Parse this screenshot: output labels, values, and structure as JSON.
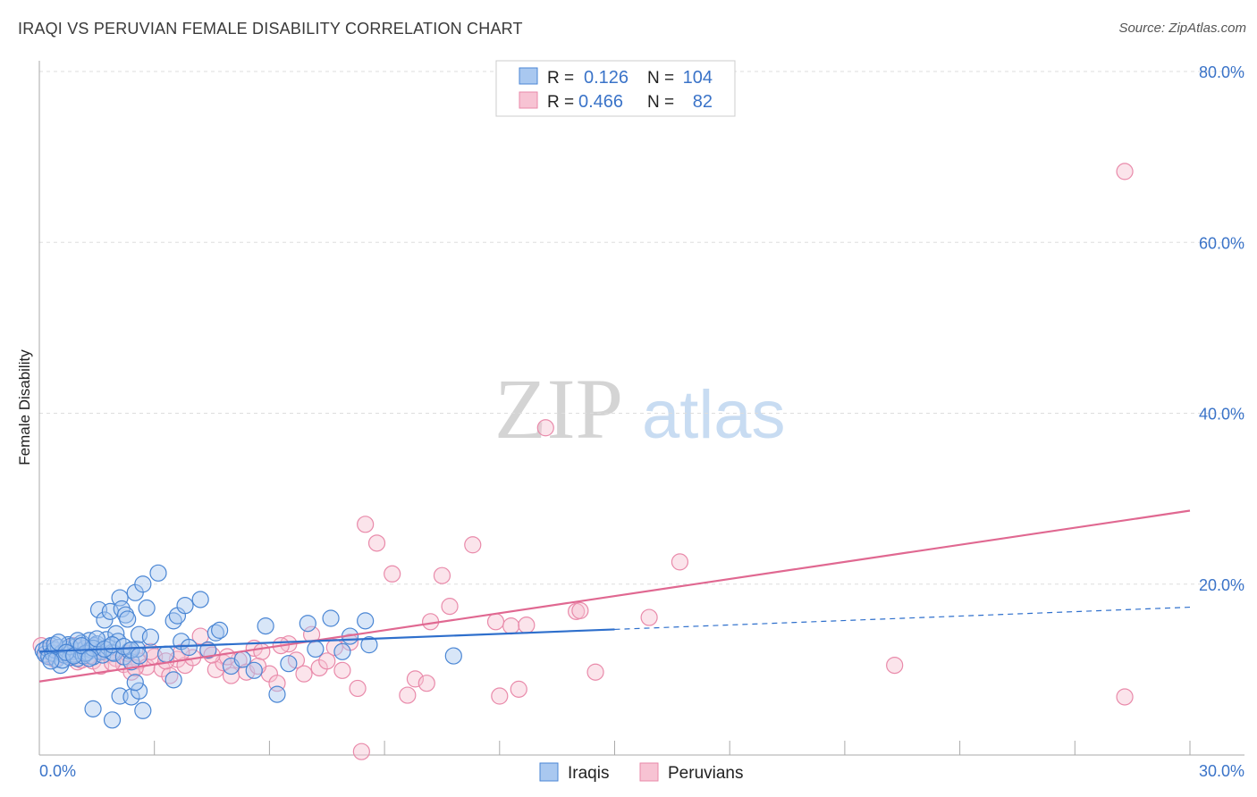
{
  "title": "IRAQI VS PERUVIAN FEMALE DISABILITY CORRELATION CHART",
  "source": "Source: ZipAtlas.com",
  "watermark": {
    "zip": "ZIP",
    "atlas": "atlas"
  },
  "legend": {
    "rows": [
      {
        "r_label": "R =",
        "r_value": "0.126",
        "n_label": "N =",
        "n_value": "104"
      },
      {
        "r_label": "R =",
        "r_value": "0.466",
        "n_label": "N =",
        "n_value": "82"
      }
    ]
  },
  "bottom_legend": [
    "Iraqis",
    "Peruvians"
  ],
  "colors": {
    "iraqi_fill": "#a9c8f0",
    "iraqi_stroke": "#4a86d4",
    "iraqi_line": "#2e6fcc",
    "peru_fill": "#f7c3d3",
    "peru_stroke": "#e98aaa",
    "peru_line": "#e06891",
    "tick_text": "#3a73c8",
    "grid": "#dddddd"
  },
  "chart_data": {
    "type": "scatter",
    "title": "IRAQI VS PERUVIAN FEMALE DISABILITY CORRELATION CHART",
    "xlabel": "",
    "ylabel": "Female Disability",
    "xlim": [
      0,
      30
    ],
    "ylim": [
      0,
      80
    ],
    "x_tick_labels": [
      "0.0%",
      "30.0%"
    ],
    "y_ticks": [
      20,
      40,
      60,
      80
    ],
    "y_tick_labels": [
      "20.0%",
      "40.0%",
      "60.0%",
      "80.0%"
    ],
    "series": [
      {
        "name": "Iraqis",
        "r": 0.126,
        "n": 104,
        "trend": {
          "x0": 0,
          "y0": 12.1,
          "x1": 15,
          "y1": 14.7,
          "dashed_to_x": 30,
          "dashed_to_y": 17.3
        },
        "points": [
          [
            0.1,
            12.2
          ],
          [
            0.15,
            11.8
          ],
          [
            0.2,
            12.5
          ],
          [
            0.25,
            11.5
          ],
          [
            0.3,
            12.8
          ],
          [
            0.35,
            11.9
          ],
          [
            0.4,
            12.3
          ],
          [
            0.45,
            11.2
          ],
          [
            0.5,
            12.6
          ],
          [
            0.55,
            10.5
          ],
          [
            0.6,
            12.0
          ],
          [
            0.65,
            11.7
          ],
          [
            0.7,
            12.4
          ],
          [
            0.75,
            12.9
          ],
          [
            0.8,
            11.4
          ],
          [
            0.85,
            12.1
          ],
          [
            0.9,
            11.8
          ],
          [
            0.95,
            12.7
          ],
          [
            1.0,
            11.3
          ],
          [
            1.05,
            12.2
          ],
          [
            1.1,
            13.1
          ],
          [
            1.15,
            11.6
          ],
          [
            1.2,
            12.5
          ],
          [
            1.25,
            12.0
          ],
          [
            1.3,
            13.4
          ],
          [
            1.35,
            12.3
          ],
          [
            1.4,
            11.5
          ],
          [
            1.45,
            12.8
          ],
          [
            1.5,
            13.0
          ],
          [
            1.55,
            17.0
          ],
          [
            1.6,
            12.1
          ],
          [
            1.65,
            11.7
          ],
          [
            1.7,
            15.8
          ],
          [
            1.75,
            13.5
          ],
          [
            1.8,
            12.6
          ],
          [
            1.85,
            16.8
          ],
          [
            1.9,
            12.0
          ],
          [
            1.95,
            11.9
          ],
          [
            2.0,
            14.2
          ],
          [
            2.05,
            13.3
          ],
          [
            2.1,
            18.4
          ],
          [
            2.15,
            17.1
          ],
          [
            2.2,
            11.5
          ],
          [
            2.25,
            16.4
          ],
          [
            2.3,
            15.9
          ],
          [
            2.35,
            12.2
          ],
          [
            2.4,
            10.9
          ],
          [
            2.5,
            19.0
          ],
          [
            2.55,
            12.4
          ],
          [
            2.6,
            14.1
          ],
          [
            2.7,
            20.0
          ],
          [
            2.8,
            17.2
          ],
          [
            2.9,
            13.8
          ],
          [
            3.1,
            21.3
          ],
          [
            3.3,
            11.8
          ],
          [
            3.5,
            15.7
          ],
          [
            3.6,
            16.3
          ],
          [
            3.7,
            13.3
          ],
          [
            3.8,
            17.5
          ],
          [
            3.9,
            12.6
          ],
          [
            4.2,
            18.2
          ],
          [
            4.4,
            12.3
          ],
          [
            4.6,
            14.3
          ],
          [
            4.7,
            14.6
          ],
          [
            5.0,
            10.4
          ],
          [
            5.3,
            11.2
          ],
          [
            5.6,
            9.9
          ],
          [
            5.9,
            15.1
          ],
          [
            6.2,
            7.1
          ],
          [
            6.5,
            10.7
          ],
          [
            7.0,
            15.4
          ],
          [
            7.2,
            12.4
          ],
          [
            7.6,
            16.0
          ],
          [
            7.9,
            12.1
          ],
          [
            8.1,
            13.9
          ],
          [
            8.5,
            15.7
          ],
          [
            8.6,
            12.9
          ],
          [
            10.8,
            11.6
          ],
          [
            1.4,
            5.4
          ],
          [
            1.9,
            4.1
          ],
          [
            2.1,
            6.9
          ],
          [
            2.4,
            6.8
          ],
          [
            2.6,
            7.5
          ],
          [
            2.7,
            5.2
          ],
          [
            2.5,
            8.5
          ],
          [
            3.5,
            8.8
          ],
          [
            0.4,
            12.9
          ],
          [
            0.6,
            11.1
          ],
          [
            0.8,
            12.7
          ],
          [
            1.0,
            13.4
          ],
          [
            1.2,
            11.9
          ],
          [
            1.4,
            12.5
          ],
          [
            0.3,
            11.0
          ],
          [
            0.5,
            13.2
          ],
          [
            0.7,
            12.0
          ],
          [
            0.9,
            11.6
          ],
          [
            1.1,
            12.8
          ],
          [
            1.3,
            11.3
          ],
          [
            1.5,
            13.6
          ],
          [
            1.7,
            12.4
          ],
          [
            1.9,
            12.9
          ],
          [
            2.2,
            12.7
          ],
          [
            2.4,
            12.3
          ],
          [
            2.6,
            11.6
          ]
        ]
      },
      {
        "name": "Peruvians",
        "r": 0.466,
        "n": 82,
        "trend": {
          "x0": 0,
          "y0": 8.6,
          "x1": 30,
          "y1": 28.6
        },
        "points": [
          [
            0.05,
            12.8
          ],
          [
            0.2,
            11.6
          ],
          [
            0.4,
            11.2
          ],
          [
            0.6,
            12.1
          ],
          [
            0.8,
            11.5
          ],
          [
            1.0,
            10.9
          ],
          [
            1.2,
            12.3
          ],
          [
            1.4,
            11.0
          ],
          [
            1.6,
            10.4
          ],
          [
            1.8,
            11.8
          ],
          [
            2.0,
            11.3
          ],
          [
            2.2,
            10.6
          ],
          [
            2.4,
            9.7
          ],
          [
            2.6,
            11.0
          ],
          [
            2.8,
            10.3
          ],
          [
            3.0,
            11.5
          ],
          [
            3.2,
            10.1
          ],
          [
            3.4,
            9.3
          ],
          [
            3.6,
            11.2
          ],
          [
            3.8,
            10.5
          ],
          [
            4.0,
            11.4
          ],
          [
            4.2,
            13.9
          ],
          [
            4.4,
            12.2
          ],
          [
            4.6,
            10.0
          ],
          [
            4.8,
            10.8
          ],
          [
            5.0,
            9.3
          ],
          [
            5.2,
            11.1
          ],
          [
            5.4,
            9.7
          ],
          [
            5.6,
            12.5
          ],
          [
            5.8,
            12.1
          ],
          [
            6.0,
            9.5
          ],
          [
            6.2,
            8.4
          ],
          [
            6.5,
            13.0
          ],
          [
            6.7,
            11.1
          ],
          [
            6.9,
            9.5
          ],
          [
            7.1,
            14.1
          ],
          [
            7.3,
            10.2
          ],
          [
            7.5,
            11.0
          ],
          [
            7.7,
            12.6
          ],
          [
            7.9,
            9.9
          ],
          [
            8.1,
            13.2
          ],
          [
            8.3,
            7.8
          ],
          [
            8.5,
            27.0
          ],
          [
            8.8,
            24.8
          ],
          [
            9.2,
            21.2
          ],
          [
            9.6,
            7.0
          ],
          [
            9.8,
            8.9
          ],
          [
            10.1,
            8.4
          ],
          [
            10.2,
            15.6
          ],
          [
            10.5,
            21.0
          ],
          [
            10.7,
            17.4
          ],
          [
            11.3,
            24.6
          ],
          [
            11.9,
            15.6
          ],
          [
            12.0,
            6.9
          ],
          [
            12.3,
            15.1
          ],
          [
            12.5,
            7.7
          ],
          [
            12.7,
            15.2
          ],
          [
            14.0,
            16.8
          ],
          [
            14.5,
            9.7
          ],
          [
            15.9,
            16.1
          ],
          [
            16.7,
            22.6
          ],
          [
            22.3,
            10.5
          ],
          [
            28.3,
            68.3
          ],
          [
            28.3,
            6.8
          ],
          [
            13.2,
            38.3
          ],
          [
            8.4,
            0.4
          ],
          [
            14.1,
            16.9
          ],
          [
            1.1,
            11.1
          ],
          [
            2.5,
            10.2
          ],
          [
            3.7,
            12.0
          ],
          [
            4.9,
            11.5
          ],
          [
            5.7,
            10.4
          ],
          [
            0.3,
            12.5
          ],
          [
            0.7,
            11.9
          ],
          [
            0.9,
            12.8
          ],
          [
            1.3,
            11.6
          ],
          [
            1.9,
            10.8
          ],
          [
            2.3,
            11.9
          ],
          [
            2.9,
            12.1
          ],
          [
            3.3,
            11.0
          ],
          [
            4.5,
            11.7
          ],
          [
            6.3,
            12.8
          ]
        ]
      }
    ]
  }
}
